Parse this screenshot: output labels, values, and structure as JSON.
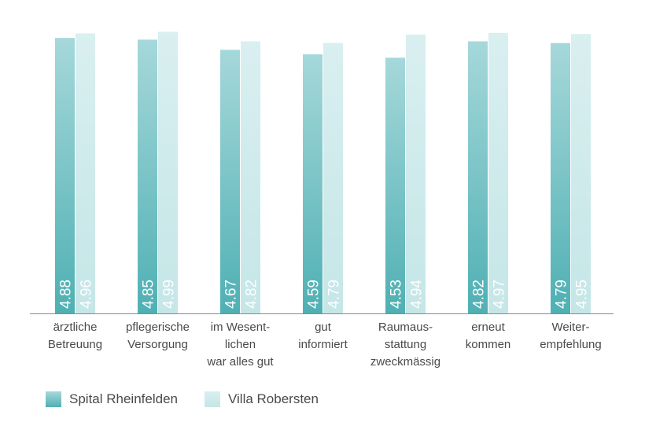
{
  "chart_data": {
    "type": "bar",
    "categories": [
      [
        "ärztliche",
        "Betreuung"
      ],
      [
        "pflegerische",
        "Versorgung"
      ],
      [
        "im Wesent-",
        "lichen",
        "war alles gut"
      ],
      [
        "gut",
        "informiert"
      ],
      [
        "Raumaus-",
        "stattung",
        "zweckmässig"
      ],
      [
        "erneut",
        "kommen"
      ],
      [
        "Weiter-",
        "empfehlung"
      ]
    ],
    "series": [
      {
        "name": "Spital Rheinfelden",
        "values": [
          4.88,
          4.85,
          4.67,
          4.59,
          4.53,
          4.82,
          4.79
        ],
        "labels": [
          "4.88",
          "4.85",
          "4.67",
          "4.59",
          "4.53",
          "4.82",
          "4.79"
        ],
        "color_top": "#a6d8da",
        "color_bottom": "#4fb0b3"
      },
      {
        "name": "Villa Robersten",
        "values": [
          4.96,
          4.99,
          4.82,
          4.79,
          4.94,
          4.97,
          4.95
        ],
        "labels": [
          "4.96",
          "4.99",
          "4.82",
          "4.79",
          "4.94",
          "4.97",
          "4.95"
        ],
        "color_top": "#d9eff0",
        "color_bottom": "#c5e6e7"
      }
    ],
    "ylim": [
      0,
      5.05
    ],
    "grid": false,
    "legend_position": "bottom-left"
  },
  "colors": {
    "axis": "#8a8a8a",
    "label_text": "#4a4a4a",
    "value_text": "#ffffff"
  }
}
